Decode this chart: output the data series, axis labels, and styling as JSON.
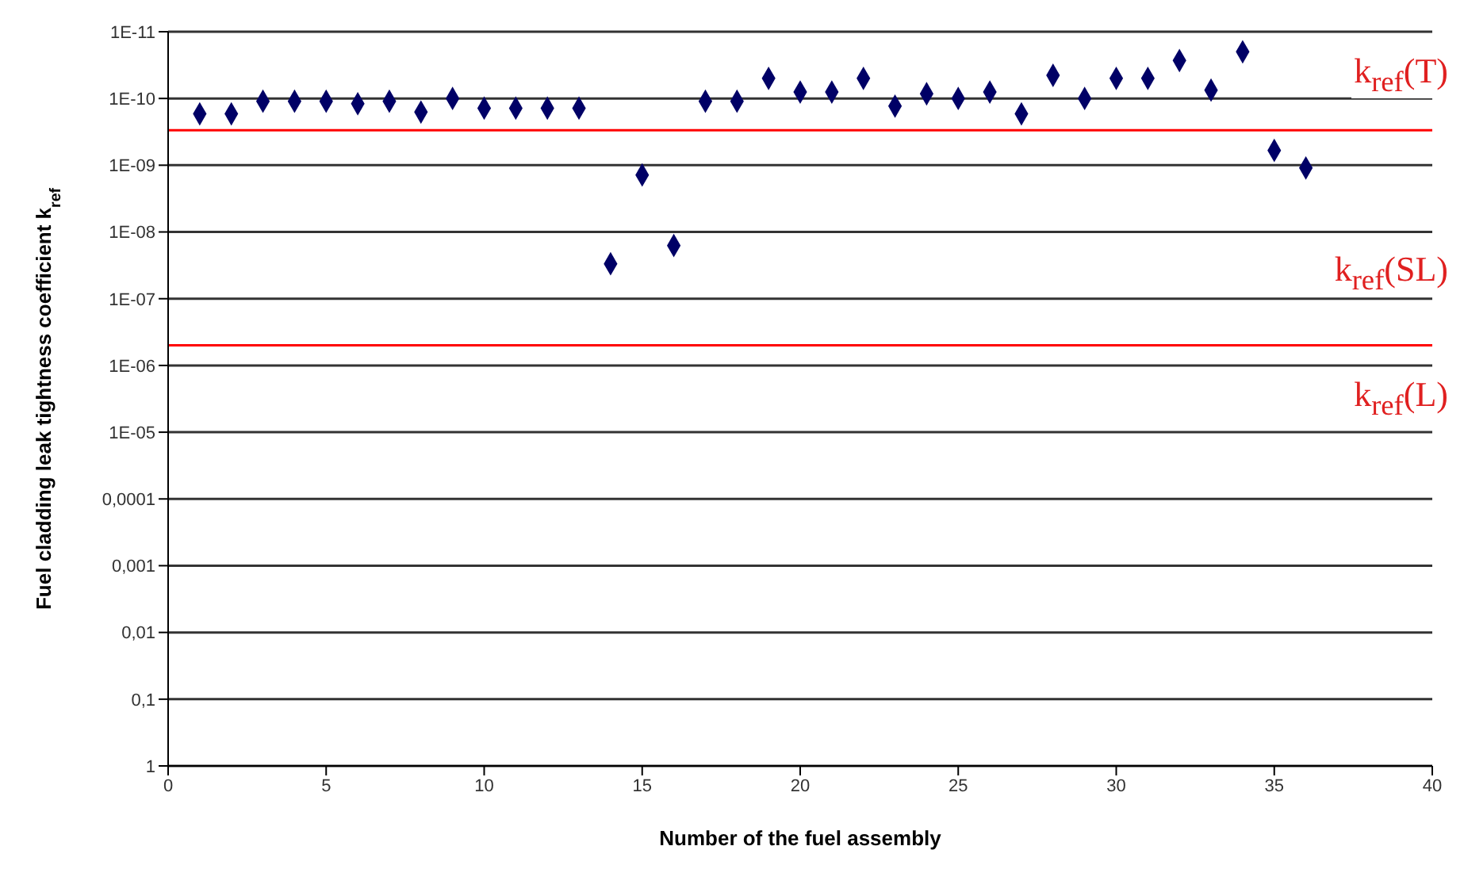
{
  "chart_data": {
    "type": "scatter",
    "xlabel": "Number of the fuel assembly",
    "ylabel": "Fuel cladding leak tightness coefficient k$_{ref}$",
    "x": [
      1,
      2,
      3,
      4,
      5,
      6,
      7,
      8,
      9,
      10,
      11,
      12,
      13,
      14,
      15,
      16,
      17,
      18,
      19,
      20,
      21,
      22,
      23,
      24,
      25,
      26,
      27,
      28,
      29,
      30,
      31,
      32,
      33,
      34,
      35,
      36
    ],
    "series": [
      {
        "color": "#000066",
        "values": [
          1.7e-10,
          1.7e-10,
          1.1e-10,
          1.1e-10,
          1.1e-10,
          1.2e-10,
          1.1e-10,
          1.6e-10,
          1e-10,
          1.4e-10,
          1.4e-10,
          1.4e-10,
          1.4e-10,
          3e-08,
          1.4e-09,
          1.6e-08,
          1.1e-10,
          1.1e-10,
          5e-11,
          8e-11,
          8e-11,
          5e-11,
          1.3e-10,
          8.5e-11,
          1e-10,
          8e-11,
          1.7e-10,
          4.5e-11,
          1e-10,
          5e-11,
          5e-11,
          2.7e-11,
          7.5e-11,
          2e-11,
          6e-10,
          1.1e-09
        ]
      }
    ],
    "marker": "diamond",
    "log": "y",
    "grid": "y",
    "legend": false,
    "xlim": [
      0,
      40
    ],
    "xticks": [
      0,
      5,
      10,
      15,
      20,
      25,
      30,
      35,
      40
    ],
    "ylim": [
      1,
      1e-11
    ],
    "yticks": [
      {
        "value": 1e-11,
        "label": "1E-11"
      },
      {
        "value": 1e-10,
        "label": "1E-10"
      },
      {
        "value": 1e-09,
        "label": "1E-09"
      },
      {
        "value": 1e-08,
        "label": "1E-08"
      },
      {
        "value": 1e-07,
        "label": "1E-07"
      },
      {
        "value": 1e-06,
        "label": "1E-06"
      },
      {
        "value": 1e-05,
        "label": "1E-05"
      },
      {
        "value": 0.0001,
        "label": "0,0001"
      },
      {
        "value": 0.001,
        "label": "0,001"
      },
      {
        "value": 0.01,
        "label": "0,01"
      },
      {
        "value": 0.1,
        "label": "0,1"
      },
      1
    ],
    "ref_lines": [
      {
        "axis": "y",
        "value": 3e-10,
        "color": "#ff0000"
      },
      {
        "axis": "y",
        "value": 5e-07,
        "color": "#ff0000"
      }
    ],
    "annotations": [
      "k$_{ref}$(T)",
      "k$_{ref}$(SL)",
      "k$_{ref}$(L)"
    ]
  }
}
